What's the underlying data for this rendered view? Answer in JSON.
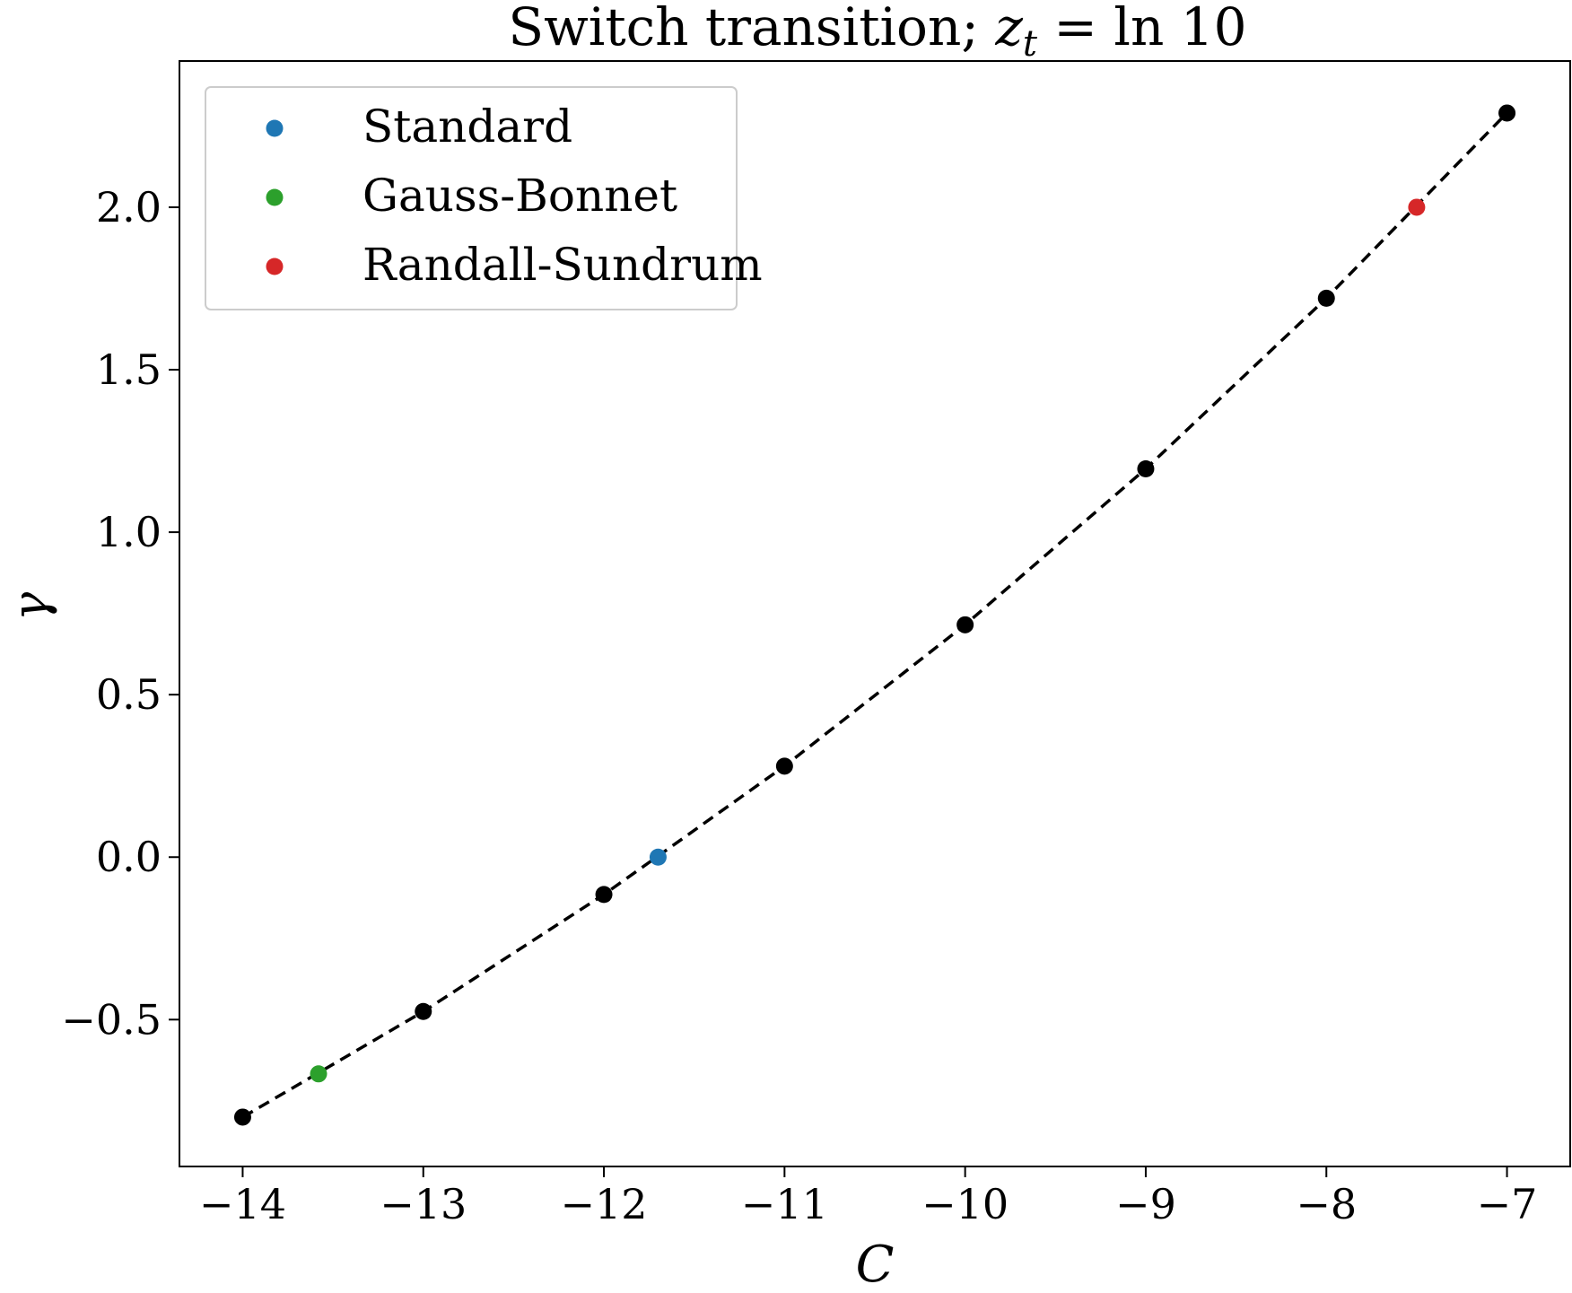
{
  "chart_data": {
    "type": "scatter",
    "title": "Switch transition; z_t = ln 10",
    "title_parts": {
      "prefix": "Switch transition; ",
      "var": "z",
      "sub": "t",
      "suffix": " = ln 10"
    },
    "xlabel": "C",
    "ylabel": "γ",
    "xlim": [
      -14.35,
      -6.65
    ],
    "ylim": [
      -0.952,
      2.45
    ],
    "xticks": [
      -14,
      -13,
      -12,
      -11,
      -10,
      -9,
      -8,
      -7
    ],
    "xtick_labels": [
      "−14",
      "−13",
      "−12",
      "−11",
      "−10",
      "−9",
      "−8",
      "−7"
    ],
    "yticks": [
      -0.5,
      0.0,
      0.5,
      1.0,
      1.5,
      2.0
    ],
    "ytick_labels": [
      "−0.5",
      "0.0",
      "0.5",
      "1.0",
      "1.5",
      "2.0"
    ],
    "grid": false,
    "legend_position": "top-left",
    "series": [
      {
        "color": "#000000",
        "line_style": "dashed",
        "x": [
          -14,
          -13,
          -12,
          -11,
          -10,
          -9,
          -8,
          -7
        ],
        "y": [
          -0.8,
          -0.475,
          -0.115,
          0.28,
          0.715,
          1.195,
          1.72,
          2.29
        ]
      },
      {
        "name": "Standard",
        "color": "#1f77b4",
        "x": [
          -11.7
        ],
        "y": [
          0.0
        ]
      },
      {
        "name": "Gauss-Bonnet",
        "color": "#2ca02c",
        "x": [
          -13.58
        ],
        "y": [
          -0.667
        ]
      },
      {
        "name": "Randall-Sundrum",
        "color": "#d62728",
        "x": [
          -7.5
        ],
        "y": [
          2.0
        ]
      }
    ]
  }
}
